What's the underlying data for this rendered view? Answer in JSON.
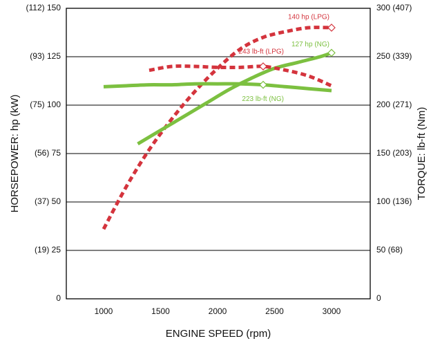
{
  "chart_data": {
    "type": "line",
    "xlabel": "ENGINE SPEED (rpm)",
    "ylabel_left": "HORSEPOWER: hp (kW)",
    "ylabel_right": "TORQUE: lb-ft (Nm)",
    "xlim": [
      1000,
      3000
    ],
    "ylim_left": [
      0,
      150
    ],
    "ylim_right": [
      0,
      300
    ],
    "x_ticks": [
      "1000",
      "1500",
      "2000",
      "2500",
      "3000"
    ],
    "y_left_ticks": [
      "0",
      "(19) 25",
      "(37) 50",
      "(56) 75",
      "(75) 100",
      "(93) 125",
      "(112) 150"
    ],
    "y_right_ticks": [
      "0",
      "50 (68)",
      "100 (136)",
      "150 (203)",
      "200 (271)",
      "250 (339)",
      "300 (407)"
    ],
    "grid": true,
    "colors": {
      "lpg": "#d4343d",
      "ng": "#7cc040"
    },
    "series": [
      {
        "id": "hp_lpg",
        "axis": "left",
        "style": "dashed",
        "color": "#d4343d",
        "x": [
          1000,
          1200,
          1400,
          1600,
          1800,
          2000,
          2200,
          2400,
          2600,
          2800,
          3000
        ],
        "y": [
          36,
          58,
          77,
          93,
          107,
          119,
          129,
          135,
          138,
          140,
          140
        ]
      },
      {
        "id": "hp_ng",
        "axis": "left",
        "style": "solid",
        "color": "#7cc040",
        "x": [
          1300,
          1500,
          1700,
          1900,
          2100,
          2300,
          2500,
          2700,
          2900,
          3000
        ],
        "y": [
          80,
          87,
          94,
          101,
          108,
          114,
          119,
          122,
          125,
          127
        ]
      },
      {
        "id": "torque_lpg",
        "axis": "right",
        "style": "dashed",
        "color": "#d4343d",
        "x": [
          1400,
          1600,
          1800,
          2000,
          2200,
          2400,
          2600,
          2800,
          3000
        ],
        "y": [
          236,
          240,
          240,
          239,
          239,
          240,
          236,
          230,
          220
        ]
      },
      {
        "id": "torque_ng",
        "axis": "right",
        "style": "solid",
        "color": "#7cc040",
        "x": [
          1000,
          1200,
          1400,
          1600,
          1800,
          2000,
          2200,
          2400,
          2600,
          2800,
          3000
        ],
        "y": [
          219,
          220,
          221,
          221,
          222,
          222,
          222,
          221,
          219,
          217,
          215
        ]
      }
    ],
    "annotations": [
      {
        "text": "140 hp (LPG)",
        "series": "hp_lpg",
        "at_x": 3000,
        "at_y": 140,
        "axis": "left",
        "color": "#d4343d"
      },
      {
        "text": "127 hp (NG)",
        "series": "hp_ng",
        "at_x": 3000,
        "at_y": 127,
        "axis": "left",
        "color": "#7cc040"
      },
      {
        "text": "243 lb-ft (LPG)",
        "series": "torque_lpg",
        "at_x": 2400,
        "at_y": 240,
        "axis": "right",
        "color": "#d4343d"
      },
      {
        "text": "223 lb-ft (NG)",
        "series": "torque_ng",
        "at_x": 2400,
        "at_y": 221,
        "axis": "right",
        "color": "#7cc040"
      }
    ]
  }
}
